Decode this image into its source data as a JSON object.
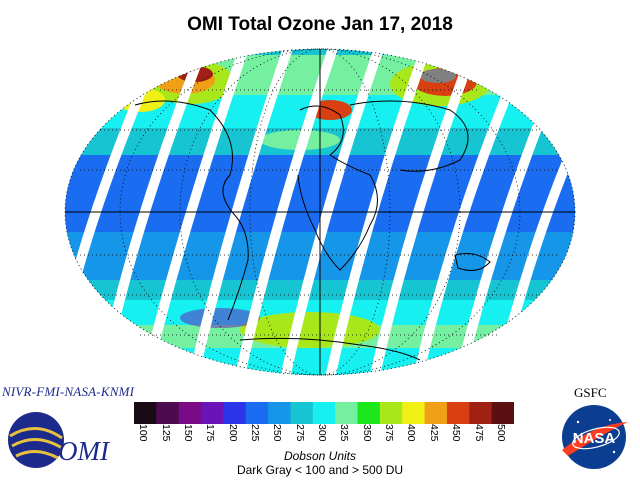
{
  "title": "OMI Total Ozone Jan 17, 2018",
  "credits": {
    "partners": "NIVR-FMI-NASA-KNMI",
    "omi_logo_text": "OMI",
    "gsfc": "GSFC",
    "nasa_logo_text": "NASA"
  },
  "colorbar": {
    "labels": [
      "100",
      "125",
      "150",
      "175",
      "200",
      "225",
      "250",
      "275",
      "300",
      "325",
      "350",
      "375",
      "400",
      "425",
      "450",
      "475",
      "500"
    ],
    "colors": [
      "#1a0a16",
      "#4d0a4d",
      "#7a0a85",
      "#6a14b8",
      "#2d35e8",
      "#1a6cf0",
      "#1696e8",
      "#16c4d2",
      "#16f0f0",
      "#74f0a0",
      "#1ae81a",
      "#a8e81a",
      "#f0f016",
      "#f0a014",
      "#d84012",
      "#a02014",
      "#5a1010"
    ],
    "units": "Dobson Units",
    "note": "Dark Gray < 100 and > 500 DU"
  }
}
